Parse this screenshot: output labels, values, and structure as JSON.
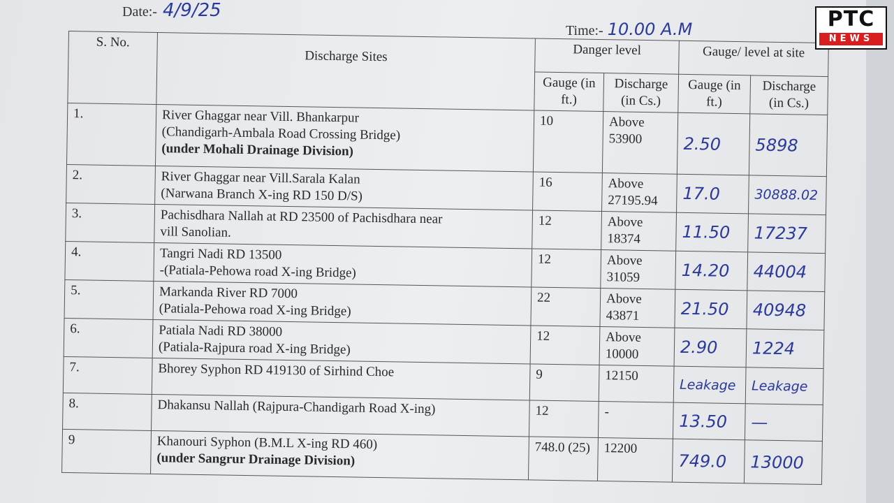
{
  "header": {
    "date_label": "Date:-",
    "date_value": "4/9/25",
    "time_label": "Time:-",
    "time_value": "10.00 A.M"
  },
  "logo": {
    "text_top": "PTC",
    "text_bottom": "NEWS"
  },
  "table": {
    "headers": {
      "sno": "S. No.",
      "sites": "Discharge Sites",
      "danger": "Danger level",
      "gauge_site": "Gauge/ level at site",
      "gauge": "Gauge (in ft.)",
      "discharge": "Discharge (in Cs.)"
    },
    "rows": [
      {
        "sno": "1.",
        "site": "River Ghaggar near Vill. Bhankarpur",
        "site2": "(Chandigarh-Ambala Road Crossing Bridge)",
        "division": "(under Mohali Drainage Division)",
        "danger_gauge": "10",
        "danger_discharge": "Above 53900",
        "site_gauge": "2.50",
        "site_discharge": "5898"
      },
      {
        "sno": "2.",
        "site": "River Ghaggar near Vill.Sarala Kalan",
        "site2": "(Narwana Branch X-ing RD 150 D/S)",
        "division": "",
        "danger_gauge": "16",
        "danger_discharge": "Above 27195.94",
        "site_gauge": "17.0",
        "site_discharge": "30888.02"
      },
      {
        "sno": "3.",
        "site": "Pachisdhara Nallah at RD 23500 of Pachisdhara near",
        "site2": "vill Sanolian.",
        "division": "",
        "danger_gauge": "12",
        "danger_discharge": "Above 18374",
        "site_gauge": "11.50",
        "site_discharge": "17237"
      },
      {
        "sno": "4.",
        "site": "Tangri Nadi RD 13500",
        "site2": "-(Patiala-Pehowa road X-ing Bridge)",
        "division": "",
        "danger_gauge": "12",
        "danger_discharge": "Above 31059",
        "site_gauge": "14.20",
        "site_discharge": "44004"
      },
      {
        "sno": "5.",
        "site": "Markanda River RD 7000",
        "site2": "(Patiala-Pehowa road X-ing Bridge)",
        "division": "",
        "danger_gauge": "22",
        "danger_discharge": "Above 43871",
        "site_gauge": "21.50",
        "site_discharge": "40948"
      },
      {
        "sno": "6.",
        "site": "Patiala Nadi RD 38000",
        "site2": "(Patiala-Rajpura road X-ing Bridge)",
        "division": "",
        "danger_gauge": "12",
        "danger_discharge": "Above 10000",
        "site_gauge": "2.90",
        "site_discharge": "1224"
      },
      {
        "sno": "7.",
        "site": "Bhorey Syphon RD 419130 of Sirhind Choe",
        "site2": "",
        "division": "",
        "danger_gauge": "9",
        "danger_discharge": "12150",
        "site_gauge": "Leakage",
        "site_discharge": "Leakage"
      },
      {
        "sno": "8.",
        "site": "Dhakansu Nallah (Rajpura-Chandigarh Road X-ing)",
        "site2": "",
        "division": "",
        "danger_gauge": "12",
        "danger_discharge": "-",
        "site_gauge": "13.50",
        "site_discharge": "—"
      },
      {
        "sno": "9",
        "site": "Khanouri Syphon (B.M.L X-ing RD 460)",
        "site2": "",
        "division": "(under Sangrur Drainage Division)",
        "danger_gauge": "748.0 (25)",
        "danger_discharge": "12200",
        "site_gauge": "749.0",
        "site_discharge": "13000"
      }
    ]
  }
}
